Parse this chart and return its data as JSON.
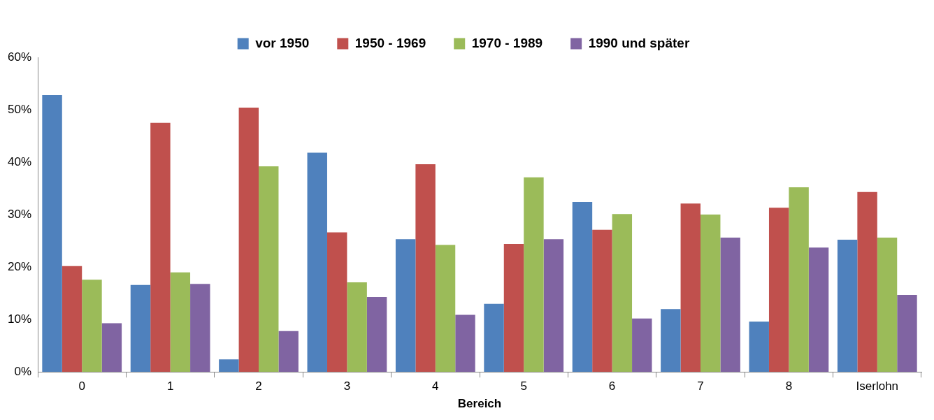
{
  "chart_data": {
    "type": "bar",
    "xlabel": "Bereich",
    "categories": [
      "0",
      "1",
      "2",
      "3",
      "4",
      "5",
      "6",
      "7",
      "8",
      "Iserlohn"
    ],
    "series": [
      {
        "name": "vor 1950",
        "color": "#4f81bd",
        "values": [
          52.8,
          16.6,
          2.4,
          41.8,
          25.3,
          13.0,
          32.4,
          12.0,
          9.6,
          25.2
        ]
      },
      {
        "name": "1950 - 1969",
        "color": "#c0504d",
        "values": [
          20.2,
          47.5,
          50.4,
          26.6,
          39.6,
          24.4,
          27.1,
          32.1,
          31.3,
          34.3
        ]
      },
      {
        "name": "1970 - 1989",
        "color": "#9bbb59",
        "values": [
          17.6,
          19.0,
          39.2,
          17.1,
          24.2,
          37.1,
          30.1,
          30.0,
          35.2,
          25.6
        ]
      },
      {
        "name": "1990 und später",
        "color": "#8064a2",
        "values": [
          9.3,
          16.8,
          7.8,
          14.3,
          10.9,
          25.3,
          10.2,
          25.6,
          23.7,
          14.7
        ]
      }
    ],
    "ylim": [
      0,
      60
    ],
    "yticks": [
      {
        "value": 0,
        "label": "0%"
      },
      {
        "value": 10,
        "label": "10%"
      },
      {
        "value": 20,
        "label": "20%"
      },
      {
        "value": 30,
        "label": "30%"
      },
      {
        "value": 40,
        "label": "40%"
      },
      {
        "value": 50,
        "label": "50%"
      },
      {
        "value": 60,
        "label": "60%"
      }
    ],
    "grid": false,
    "legend": "top"
  }
}
